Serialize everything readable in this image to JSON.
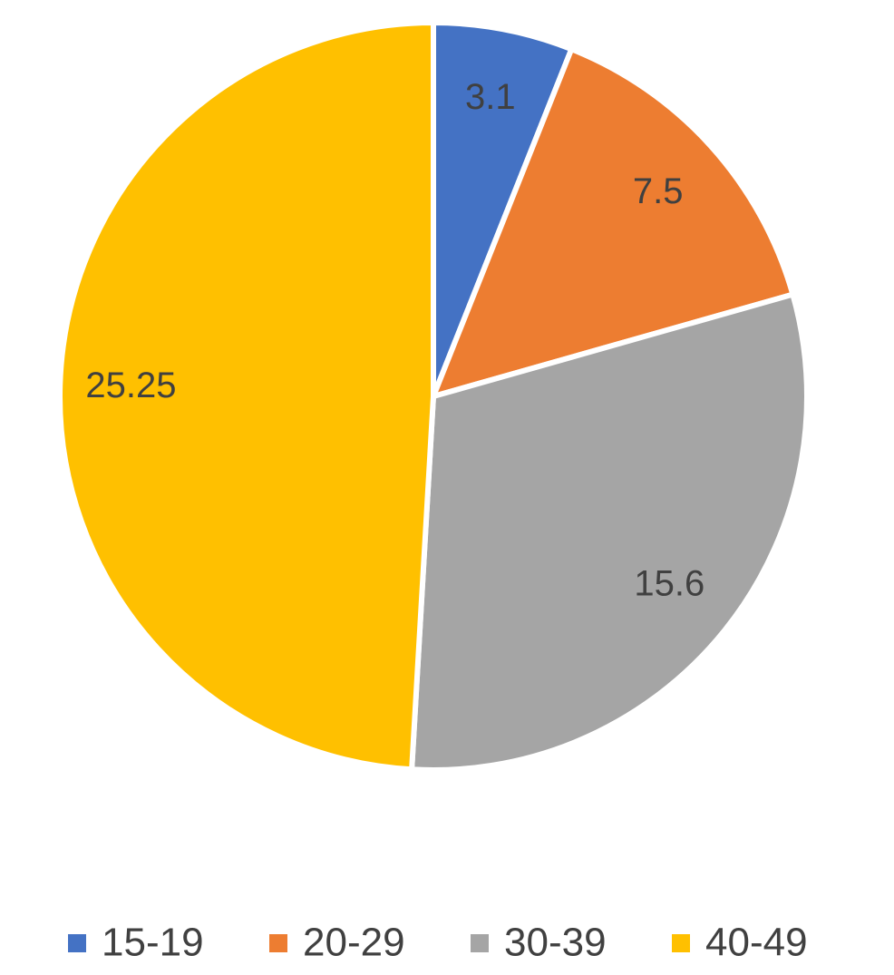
{
  "chart_data": {
    "type": "pie",
    "categories": [
      "15-19",
      "20-29",
      "30-39",
      "40-49"
    ],
    "values": [
      3.1,
      7.5,
      15.6,
      25.25
    ],
    "colors": [
      "#4472c4",
      "#ed7d31",
      "#a5a5a5",
      "#ffc000"
    ],
    "legend": "bottom"
  }
}
